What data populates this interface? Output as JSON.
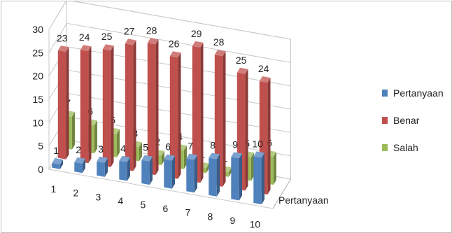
{
  "chart_data": {
    "type": "bar",
    "style": "3d-clustered-columns",
    "title": "",
    "categories": [
      "1",
      "2",
      "3",
      "4",
      "5",
      "6",
      "7",
      "8",
      "9",
      "10"
    ],
    "yticks": [
      "0",
      "5",
      "10",
      "15",
      "20",
      "25",
      "30"
    ],
    "ylim": [
      0,
      30
    ],
    "depth_axis_label": "Pertanyaan",
    "grid": true,
    "legend_position": "right",
    "series": [
      {
        "name": "Pertanyaan",
        "color": "#4f81bd",
        "values": [
          1,
          2,
          3,
          4,
          5,
          6,
          7,
          8,
          9,
          10
        ],
        "labels": [
          "1",
          "2",
          "3",
          "4",
          "5",
          "6",
          "7",
          "8",
          "9",
          "10"
        ]
      },
      {
        "name": "Benar",
        "color": "#c0504d",
        "values": [
          23,
          24,
          25,
          27,
          28,
          26,
          29,
          28,
          25,
          24
        ],
        "labels": [
          "23",
          "24",
          "25",
          "27",
          "28",
          "26",
          "29",
          "28",
          "25",
          "24"
        ]
      },
      {
        "name": "Salah",
        "color": "#9bbb59",
        "values": [
          7,
          6,
          5,
          3,
          2,
          4,
          1,
          1,
          5,
          6
        ],
        "labels": [
          "7",
          "6",
          "5",
          "3",
          "2",
          "4",
          "1",
          "1",
          "5",
          "6"
        ]
      }
    ]
  }
}
